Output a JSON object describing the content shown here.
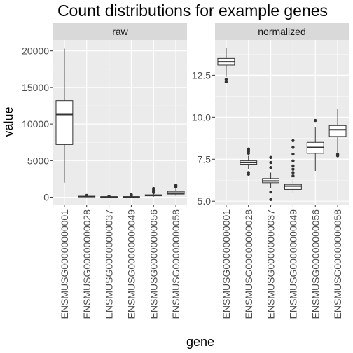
{
  "chart_data": {
    "type": "boxplot",
    "title": "Count distributions for example genes",
    "xlabel": "gene",
    "ylabel": "value",
    "categories": [
      "ENSMUSG00000000001",
      "ENSMUSG00000000028",
      "ENSMUSG00000000037",
      "ENSMUSG00000000049",
      "ENSMUSG00000000056",
      "ENSMUSG00000000058"
    ],
    "panels": [
      {
        "name": "raw",
        "ylim": [
          -1000,
          21500
        ],
        "y_ticks": [
          0,
          5000,
          10000,
          15000,
          20000
        ],
        "y_tick_labels": [
          "0",
          "5000",
          "10000",
          "15000",
          "20000"
        ],
        "boxes": [
          {
            "min": 2000,
            "q1": 7200,
            "median": 11300,
            "q3": 13200,
            "max": 20300,
            "outliers": []
          },
          {
            "min": 10,
            "q1": 60,
            "median": 90,
            "q3": 130,
            "max": 180,
            "outliers": [
              250
            ]
          },
          {
            "min": 5,
            "q1": 20,
            "median": 40,
            "q3": 60,
            "max": 100,
            "outliers": [
              130
            ]
          },
          {
            "min": 5,
            "q1": 20,
            "median": 40,
            "q3": 70,
            "max": 130,
            "outliers": [
              200,
              280,
              360
            ]
          },
          {
            "min": 70,
            "q1": 190,
            "median": 250,
            "q3": 330,
            "max": 500,
            "outliers": [
              650,
              800,
              1000,
              1200
            ]
          },
          {
            "min": 200,
            "q1": 430,
            "median": 580,
            "q3": 800,
            "max": 1250,
            "outliers": [
              1400,
              1550,
              1650
            ]
          }
        ]
      },
      {
        "name": "normalized",
        "ylim": [
          4.8,
          14.6
        ],
        "y_ticks": [
          5.0,
          7.5,
          10.0,
          12.5
        ],
        "y_tick_labels": [
          "5.0",
          "7.5",
          "10.0",
          "12.5"
        ],
        "boxes": [
          {
            "min": 12.4,
            "q1": 13.1,
            "median": 13.3,
            "q3": 13.5,
            "max": 14.1,
            "outliers": [
              12.1,
              12.25
            ]
          },
          {
            "min": 6.9,
            "q1": 7.2,
            "median": 7.3,
            "q3": 7.4,
            "max": 7.7,
            "outliers": [
              6.6,
              6.7,
              7.85,
              7.95,
              8.05,
              8.1
            ]
          },
          {
            "min": 5.8,
            "q1": 6.1,
            "median": 6.2,
            "q3": 6.35,
            "max": 6.7,
            "outliers": [
              5.1,
              5.55,
              7.0,
              7.3,
              7.6
            ]
          },
          {
            "min": 5.5,
            "q1": 5.7,
            "median": 5.9,
            "q3": 6.0,
            "max": 6.3,
            "outliers": [
              6.5,
              6.7,
              6.9,
              7.1,
              7.4,
              7.8,
              8.2,
              8.6
            ]
          },
          {
            "min": 6.8,
            "q1": 7.85,
            "median": 8.2,
            "q3": 8.5,
            "max": 9.4,
            "outliers": [
              9.8
            ]
          },
          {
            "min": 7.9,
            "q1": 8.85,
            "median": 9.25,
            "q3": 9.5,
            "max": 10.5,
            "outliers": [
              7.7,
              7.8
            ]
          }
        ]
      }
    ],
    "grid": true,
    "legend": "none"
  },
  "colors": {
    "panel_bg": "#ebebeb",
    "strip_bg": "#d9d9d9",
    "grid_major": "#ffffff",
    "box_fill": "#ffffff",
    "box_line": "#333333",
    "outlier": "#333333",
    "tick": "#333333"
  }
}
